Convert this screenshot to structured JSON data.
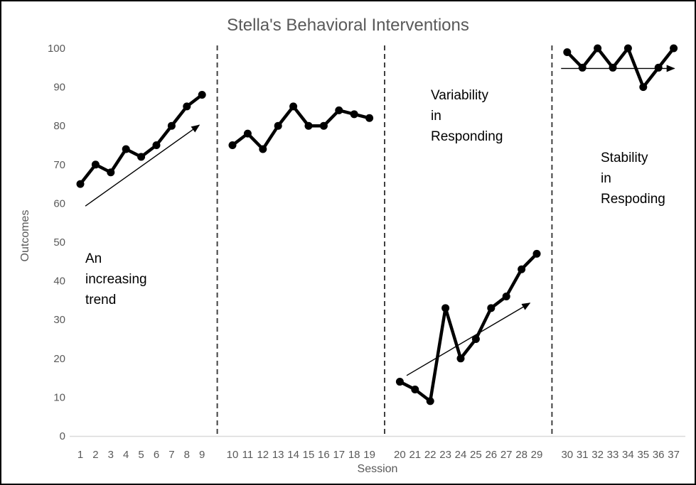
{
  "chart_data": {
    "type": "line",
    "title": "Stella's Behavioral Interventions",
    "xlabel": "Session",
    "ylabel": "Outcomes",
    "ylim": [
      0,
      100
    ],
    "yticks": [
      0,
      10,
      20,
      30,
      40,
      50,
      60,
      70,
      80,
      90,
      100
    ],
    "grid": false,
    "legend": "none",
    "marker": "filled-circle",
    "colors": {
      "series": "#000000",
      "axis_text": "#595959",
      "title_text": "#595959",
      "axis_line": "#d9d9d9",
      "phase_separator": "#404040",
      "annotation_text": "#000000",
      "trend_arrow": "#000000"
    },
    "phase_separator_style": "dashed",
    "phases": [
      {
        "name": "An increasing trend",
        "sessions": [
          1,
          2,
          3,
          4,
          5,
          6,
          7,
          8,
          9
        ],
        "values": [
          65,
          70,
          68,
          74,
          72,
          75,
          80,
          85,
          88
        ]
      },
      {
        "name": "",
        "sessions": [
          10,
          11,
          12,
          13,
          14,
          15,
          16,
          17,
          18,
          19
        ],
        "values": [
          75,
          78,
          74,
          80,
          85,
          80,
          80,
          84,
          83,
          82
        ]
      },
      {
        "name": "Variability in Responding",
        "sessions": [
          20,
          21,
          22,
          23,
          24,
          25,
          26,
          27,
          28,
          29
        ],
        "values": [
          14,
          12,
          9,
          33,
          20,
          25,
          33,
          36,
          43,
          47
        ]
      },
      {
        "name": "Stability in Respoding",
        "sessions": [
          30,
          31,
          32,
          33,
          34,
          35,
          36,
          37
        ],
        "values": [
          99,
          95,
          100,
          95,
          100,
          90,
          95,
          100
        ]
      }
    ],
    "annotations": [
      {
        "text": "An\nincreasing\ntrend"
      },
      {
        "text": "Variability\n in\nResponding"
      },
      {
        "text": "Stability\nin\nRespoding"
      }
    ],
    "trend_arrows": [
      {
        "phase": 0,
        "from": {
          "session": 1.33,
          "value": 59.3
        },
        "to": {
          "session": 8.82,
          "value": 80.2
        }
      },
      {
        "phase": 2,
        "from": {
          "session": 20.45,
          "value": 15.6
        },
        "to": {
          "session": 28.55,
          "value": 34.3
        }
      },
      {
        "phase": 3,
        "from": {
          "session": 29.6,
          "value": 94.8
        },
        "to": {
          "session": 37.05,
          "value": 94.8
        }
      }
    ]
  }
}
